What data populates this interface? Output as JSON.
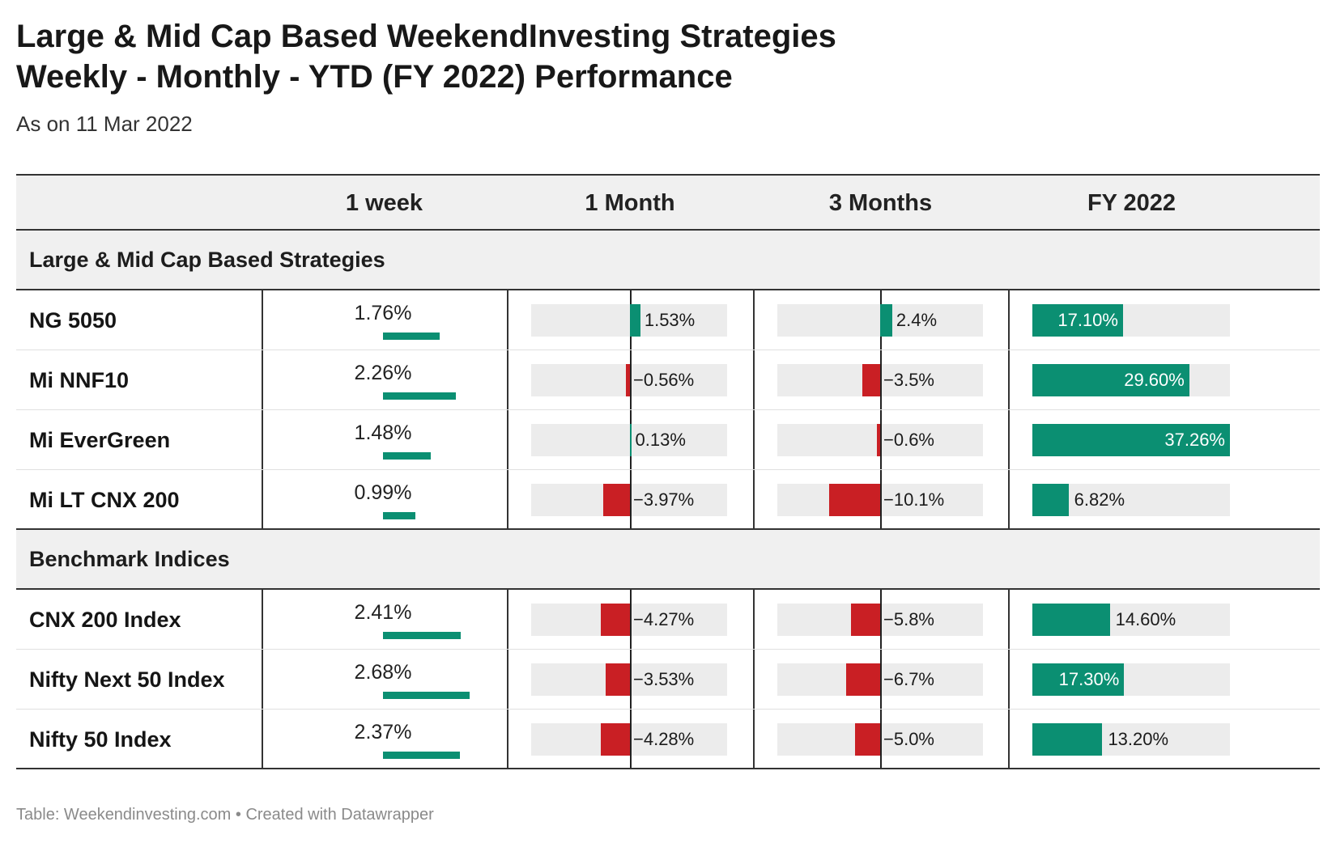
{
  "title_line1": "Large & Mid Cap Based WeekendInvesting Strategies",
  "title_line2": "Weekly - Monthly - YTD (FY 2022) Performance",
  "subtitle": "As on 11 Mar 2022",
  "footer": "Table: Weekendinvesting.com • Created with Datawrapper",
  "colors": {
    "positive": "#0b8f72",
    "negative": "#c91f24",
    "track": "#ececec",
    "header_bg": "#f0f0f0"
  },
  "columns": [
    "1 week",
    "1 Month",
    "3 Months",
    "FY 2022"
  ],
  "groups": [
    {
      "label": "Large & Mid Cap Based Strategies",
      "rows": [
        {
          "name": "NG 5050",
          "week": "1.76%",
          "month": "1.53%",
          "three": "2.4%",
          "fy": "17.10%"
        },
        {
          "name": "Mi NNF10",
          "week": "2.26%",
          "month": "−0.56%",
          "three": "−3.5%",
          "fy": "29.60%"
        },
        {
          "name": "Mi EverGreen",
          "week": "1.48%",
          "month": "0.13%",
          "three": "−0.6%",
          "fy": "37.26%"
        },
        {
          "name": "Mi LT CNX 200",
          "week": "0.99%",
          "month": "−3.97%",
          "three": "−10.1%",
          "fy": "6.82%"
        }
      ]
    },
    {
      "label": "Benchmark Indices",
      "rows": [
        {
          "name": "CNX 200 Index",
          "week": "2.41%",
          "month": "−4.27%",
          "three": "−5.8%",
          "fy": "14.60%"
        },
        {
          "name": "Nifty Next 50 Index",
          "week": "2.68%",
          "month": "−3.53%",
          "three": "−6.7%",
          "fy": "17.30%"
        },
        {
          "name": "Nifty 50 Index",
          "week": "2.37%",
          "month": "−4.28%",
          "three": "−5.0%",
          "fy": "13.20%"
        }
      ]
    }
  ],
  "chart_data": {
    "type": "table",
    "columns": [
      "1 week",
      "1 Month",
      "3 Months",
      "FY 2022"
    ],
    "rows": [
      {
        "name": "NG 5050",
        "group": "Large & Mid Cap Based Strategies",
        "values": [
          1.76,
          1.53,
          2.4,
          17.1
        ]
      },
      {
        "name": "Mi NNF10",
        "group": "Large & Mid Cap Based Strategies",
        "values": [
          2.26,
          -0.56,
          -3.5,
          29.6
        ]
      },
      {
        "name": "Mi EverGreen",
        "group": "Large & Mid Cap Based Strategies",
        "values": [
          1.48,
          0.13,
          -0.6,
          37.26
        ]
      },
      {
        "name": "Mi LT CNX 200",
        "group": "Large & Mid Cap Based Strategies",
        "values": [
          0.99,
          -3.97,
          -10.1,
          6.82
        ]
      },
      {
        "name": "CNX 200 Index",
        "group": "Benchmark Indices",
        "values": [
          2.41,
          -4.27,
          -5.8,
          14.6
        ]
      },
      {
        "name": "Nifty Next 50 Index",
        "group": "Benchmark Indices",
        "values": [
          2.68,
          -3.53,
          -6.7,
          17.3
        ]
      },
      {
        "name": "Nifty 50 Index",
        "group": "Benchmark Indices",
        "values": [
          2.37,
          -4.28,
          -5.0,
          13.2
        ]
      }
    ]
  }
}
